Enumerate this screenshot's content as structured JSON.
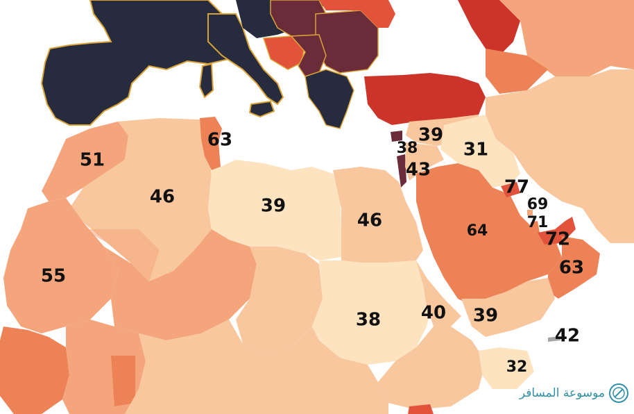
{
  "map": {
    "colors": {
      "sea": "#ffffff",
      "scale": [
        "#fde3c0",
        "#f8c79e",
        "#f4a57c",
        "#ee8257",
        "#e2533b",
        "#cc342a",
        "#6b2c39",
        "#262b3d"
      ],
      "border_europe": "#d9a23a"
    },
    "labels": [
      {
        "id": "morocco",
        "value": "51"
      },
      {
        "id": "algeria",
        "value": "46"
      },
      {
        "id": "tunisia",
        "value": "63"
      },
      {
        "id": "libya",
        "value": "39"
      },
      {
        "id": "egypt",
        "value": "46"
      },
      {
        "id": "mauritania",
        "value": "55"
      },
      {
        "id": "sudan",
        "value": "38"
      },
      {
        "id": "eritrea",
        "value": "40"
      },
      {
        "id": "yemen",
        "value": "39"
      },
      {
        "id": "djibouti",
        "value": "32"
      },
      {
        "id": "somalia",
        "value": "42"
      },
      {
        "id": "syria",
        "value": "39"
      },
      {
        "id": "lebanon",
        "value": "38"
      },
      {
        "id": "jordan",
        "value": "43"
      },
      {
        "id": "iraq",
        "value": "31"
      },
      {
        "id": "saudi-arabia",
        "value": "64"
      },
      {
        "id": "kuwait",
        "value": "77"
      },
      {
        "id": "bahrain",
        "value": "69"
      },
      {
        "id": "qatar",
        "value": "71"
      },
      {
        "id": "uae",
        "value": "72"
      },
      {
        "id": "oman",
        "value": "63"
      }
    ]
  },
  "watermark": {
    "text": "موسوعة المسافر",
    "icon": "travel-encyclopedia-logo-icon",
    "color": "#2f8fa8"
  }
}
